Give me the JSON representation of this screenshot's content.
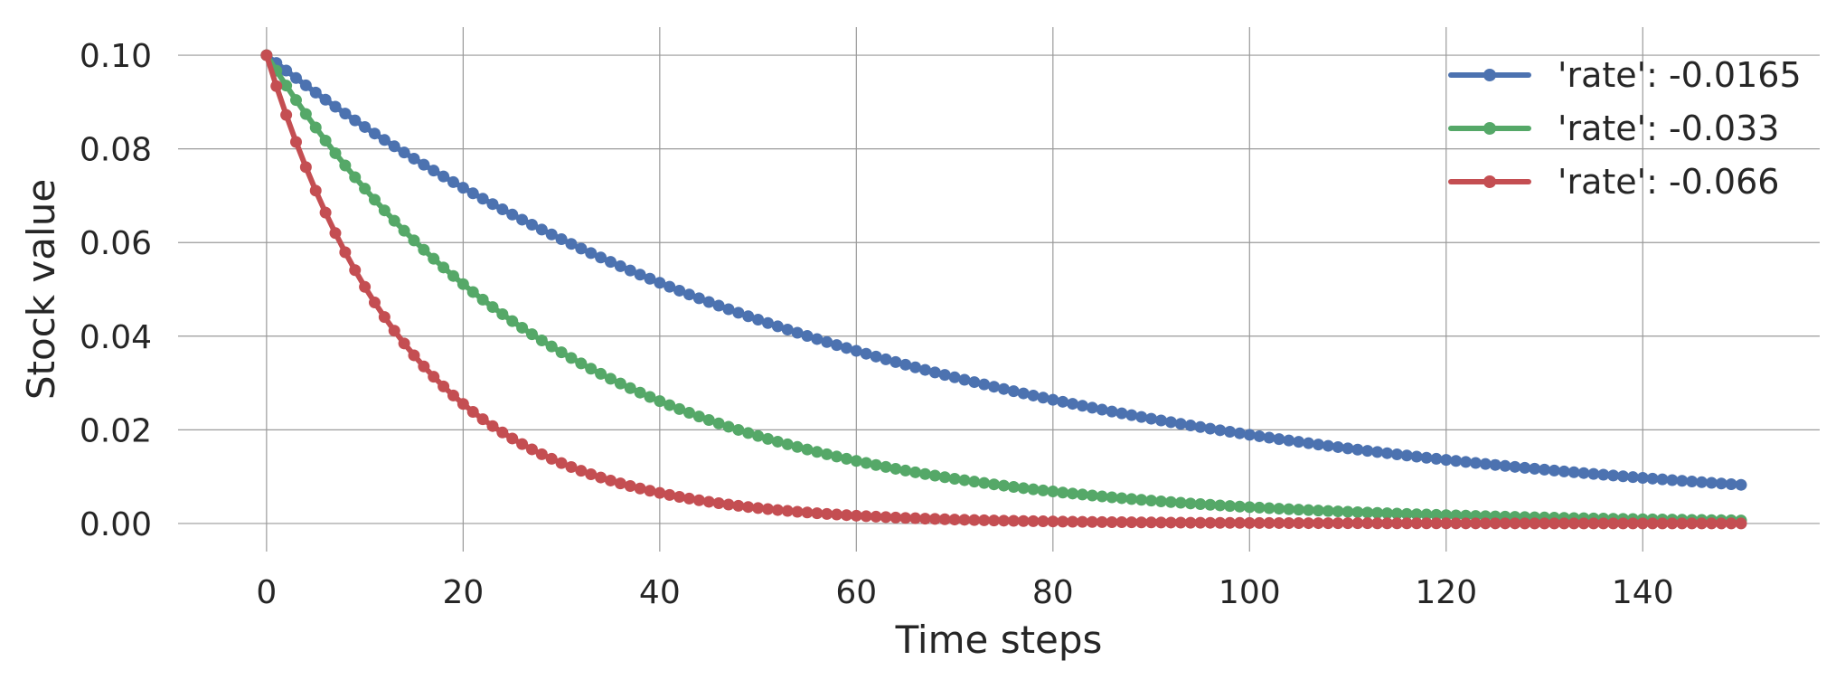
{
  "chart_data": {
    "type": "line",
    "title": "",
    "xlabel": "Time steps",
    "ylabel": "Stock value",
    "xlim": [
      -9,
      158
    ],
    "ylim": [
      -0.006,
      0.106
    ],
    "xticks": [
      0,
      20,
      40,
      60,
      80,
      100,
      120,
      140
    ],
    "xtick_labels": [
      "0",
      "20",
      "40",
      "60",
      "80",
      "100",
      "120",
      "140"
    ],
    "yticks": [
      0.0,
      0.02,
      0.04,
      0.06,
      0.08,
      0.1
    ],
    "ytick_labels": [
      "0.00",
      "0.02",
      "0.04",
      "0.06",
      "0.08",
      "0.10"
    ],
    "grid": true,
    "legend_position": "top-right",
    "x": [
      0,
      1,
      2,
      3,
      4,
      5,
      6,
      7,
      8,
      9,
      10,
      11,
      12,
      13,
      14,
      15,
      16,
      17,
      18,
      19,
      20,
      21,
      22,
      23,
      24,
      25,
      26,
      27,
      28,
      29,
      30,
      31,
      32,
      33,
      34,
      35,
      36,
      37,
      38,
      39,
      40,
      41,
      42,
      43,
      44,
      45,
      46,
      47,
      48,
      49,
      50,
      51,
      52,
      53,
      54,
      55,
      56,
      57,
      58,
      59,
      60,
      61,
      62,
      63,
      64,
      65,
      66,
      67,
      68,
      69,
      70,
      71,
      72,
      73,
      74,
      75,
      76,
      77,
      78,
      79,
      80,
      81,
      82,
      83,
      84,
      85,
      86,
      87,
      88,
      89,
      90,
      91,
      92,
      93,
      94,
      95,
      96,
      97,
      98,
      99,
      100,
      101,
      102,
      103,
      104,
      105,
      106,
      107,
      108,
      109,
      110,
      111,
      112,
      113,
      114,
      115,
      116,
      117,
      118,
      119,
      120,
      121,
      122,
      123,
      124,
      125,
      126,
      127,
      128,
      129,
      130,
      131,
      132,
      133,
      134,
      135,
      136,
      137,
      138,
      139,
      140,
      141,
      142,
      143,
      144,
      145,
      146,
      147,
      148,
      149,
      150
    ],
    "series": [
      {
        "name": "'rate': -0.0165",
        "color": "#4c72b0",
        "values": [
          0.1,
          0.09835,
          0.09673,
          0.09513,
          0.09356,
          0.09202,
          0.0905,
          0.08901,
          0.08754,
          0.08609,
          0.08467,
          0.08327,
          0.0819,
          0.08055,
          0.07922,
          0.07791,
          0.07663,
          0.07536,
          0.07412,
          0.0729,
          0.0717,
          0.07051,
          0.06935,
          0.06821,
          0.06708,
          0.06597,
          0.06488,
          0.06381,
          0.06276,
          0.06173,
          0.06071,
          0.05971,
          0.05872,
          0.05775,
          0.0568,
          0.05586,
          0.05494,
          0.05403,
          0.05314,
          0.05227,
          0.0514,
          0.05056,
          0.04972,
          0.0489,
          0.04809,
          0.0473,
          0.04652,
          0.04575,
          0.045,
          0.04426,
          0.04353,
          0.04281,
          0.0421,
          0.04141,
          0.04073,
          0.04005,
          0.03939,
          0.03874,
          0.0381,
          0.03748,
          0.03686,
          0.03625,
          0.03565,
          0.03506,
          0.03448,
          0.03391,
          0.03335,
          0.0328,
          0.03226,
          0.03173,
          0.03121,
          0.03069,
          0.03019,
          0.02969,
          0.0292,
          0.02872,
          0.02824,
          0.02778,
          0.02732,
          0.02687,
          0.02642,
          0.02599,
          0.02556,
          0.02514,
          0.02472,
          0.02431,
          0.02391,
          0.02352,
          0.02313,
          0.02275,
          0.02237,
          0.022,
          0.02164,
          0.02128,
          0.02093,
          0.02059,
          0.02025,
          0.01991,
          0.01958,
          0.01926,
          0.01894,
          0.01863,
          0.01832,
          0.01802,
          0.01772,
          0.01743,
          0.01714,
          0.01686,
          0.01658,
          0.01631,
          0.01604,
          0.01577,
          0.01551,
          0.01526,
          0.01501,
          0.01476,
          0.01452,
          0.01428,
          0.01404,
          0.01381,
          0.01358,
          0.01336,
          0.01314,
          0.01292,
          0.01271,
          0.0125,
          0.01229,
          0.01209,
          0.01189,
          0.01169,
          0.0115,
          0.01131,
          0.01112,
          0.01094,
          0.01076,
          0.01058,
          0.01041,
          0.01024,
          0.01007,
          0.0099,
          0.00974,
          0.00958,
          0.00942,
          0.00926,
          0.00911,
          0.00896,
          0.00881,
          0.00867,
          0.00853,
          0.00839,
          0.00825
        ]
      },
      {
        "name": "'rate': -0.033",
        "color": "#55a868",
        "values": [
          0.1,
          0.0967,
          0.09351,
          0.09042,
          0.08744,
          0.08456,
          0.08177,
          0.07907,
          0.07646,
          0.07394,
          0.0715,
          0.06914,
          0.06686,
          0.06465,
          0.06252,
          0.06045,
          0.05846,
          0.05653,
          0.05467,
          0.05286,
          0.05112,
          0.04943,
          0.0478,
          0.04622,
          0.0447,
          0.04322,
          0.0418,
          0.04042,
          0.03909,
          0.0378,
          0.03655,
          0.03534,
          0.03418,
          0.03305,
          0.03196,
          0.03091,
          0.02989,
          0.0289,
          0.02795,
          0.02702,
          0.02613,
          0.02527,
          0.02444,
          0.02363,
          0.02285,
          0.0221,
          0.02137,
          0.02066,
          0.01998,
          0.01932,
          0.01869,
          0.01807,
          0.01747,
          0.0169,
          0.01634,
          0.0158,
          0.01528,
          0.01478,
          0.01429,
          0.01382,
          0.01336,
          0.01292,
          0.01249,
          0.01208,
          0.01168,
          0.0113,
          0.01093,
          0.01056,
          0.01022,
          0.00988,
          0.00955,
          0.00924,
          0.00893,
          0.00864,
          0.00835,
          0.00808,
          0.00781,
          0.00755,
          0.0073,
          0.00706,
          0.00683,
          0.0066,
          0.00639,
          0.00618,
          0.00597,
          0.00577,
          0.00558,
          0.0054,
          0.00522,
          0.00505,
          0.00488,
          0.00472,
          0.00457,
          0.00442,
          0.00427,
          0.00413,
          0.00399,
          0.00386,
          0.00373,
          0.00361,
          0.00349,
          0.00338,
          0.00326,
          0.00316,
          0.00305,
          0.00295,
          0.00285,
          0.00276,
          0.00267,
          0.00258,
          0.00249,
          0.00241,
          0.00233,
          0.00226,
          0.00218,
          0.00211,
          0.00204,
          0.00197,
          0.00191,
          0.00185,
          0.00178,
          0.00173,
          0.00167,
          0.00161,
          0.00156,
          0.00151,
          0.00146,
          0.00141,
          0.00136,
          0.00132,
          0.00128,
          0.00123,
          0.00119,
          0.00115,
          0.00112,
          0.00108,
          0.00104,
          0.00101,
          0.00098,
          0.00094,
          0.00091,
          0.00088,
          0.00085,
          0.00083,
          0.0008,
          0.00077,
          0.00075,
          0.00072,
          0.0007,
          0.00068,
          0.00065
        ]
      },
      {
        "name": "'rate': -0.066",
        "color": "#c44e52",
        "values": [
          0.1,
          0.0934,
          0.08724,
          0.08148,
          0.0761,
          0.07108,
          0.06639,
          0.06201,
          0.05792,
          0.0541,
          0.05052,
          0.04719,
          0.04408,
          0.04117,
          0.03845,
          0.03591,
          0.03354,
          0.03133,
          0.02926,
          0.02733,
          0.02553,
          0.02384,
          0.02227,
          0.0208,
          0.01943,
          0.01815,
          0.01695,
          0.01583,
          0.01478,
          0.01381,
          0.0129,
          0.01205,
          0.01125,
          0.01051,
          0.00982,
          0.00917,
          0.00856,
          0.008,
          0.00747,
          0.00698,
          0.00652,
          0.00609,
          0.00568,
          0.00531,
          0.00496,
          0.00463,
          0.00433,
          0.00404,
          0.00377,
          0.00352,
          0.00329,
          0.00307,
          0.00287,
          0.00268,
          0.0025,
          0.00234,
          0.00218,
          0.00204,
          0.00191,
          0.00178,
          0.00166,
          0.00155,
          0.00145,
          0.00136,
          0.00127,
          0.00118,
          0.00111,
          0.00103,
          0.00097,
          0.0009,
          0.00084,
          0.00079,
          0.00074,
          0.00069,
          0.00064,
          0.0006,
          0.00056,
          0.00052,
          0.00049,
          0.00046,
          0.00043,
          0.0004,
          0.00037,
          0.00035,
          0.00033,
          0.0003,
          0.00028,
          0.00027,
          0.00025,
          0.00023,
          0.00022,
          0.0002,
          0.00019,
          0.00018,
          0.00016,
          0.00015,
          0.00014,
          0.00013,
          0.00012,
          0.00012,
          0.00011,
          0.0001,
          0.0001,
          9e-05,
          8e-05,
          8e-05,
          7e-05,
          7e-05,
          6e-05,
          6e-05,
          5e-05,
          5e-05,
          5e-05,
          4e-05,
          4e-05,
          4e-05,
          3e-05,
          3e-05,
          3e-05,
          3e-05,
          3e-05,
          2e-05,
          2e-05,
          2e-05,
          2e-05,
          2e-05,
          2e-05,
          2e-05,
          1e-05,
          1e-05,
          1e-05,
          1e-05,
          1e-05,
          1e-05,
          1e-05,
          1e-05,
          1e-05,
          1e-05,
          1e-05,
          1e-05,
          1e-05,
          0.0,
          0.0,
          0.0,
          0.0,
          0.0,
          0.0,
          0.0,
          0.0,
          0.0,
          0.0
        ]
      }
    ]
  }
}
